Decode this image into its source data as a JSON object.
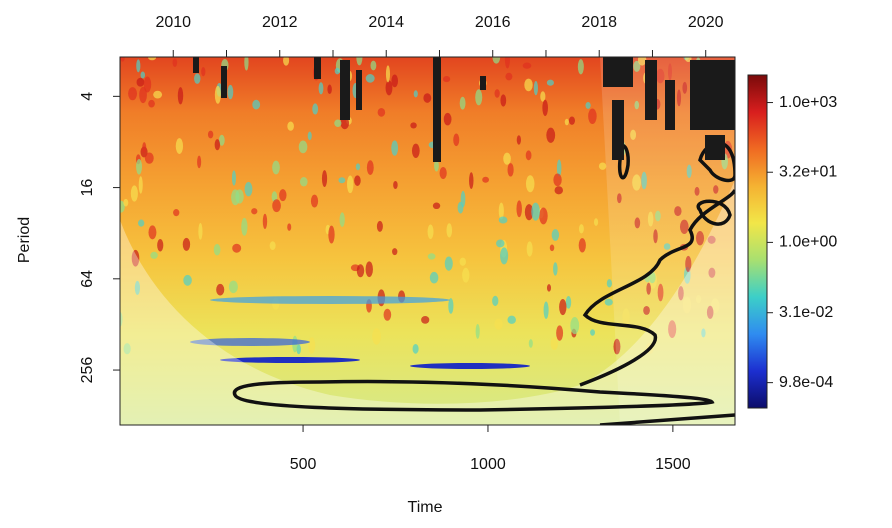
{
  "chart_data": {
    "type": "wavelet",
    "x_label": "Time",
    "y_label": "Period",
    "xlim": [
      5,
      1668
    ],
    "xticks": [
      500,
      1000,
      1500
    ],
    "x2lim": [
      2009.0,
      2020.55
    ],
    "x2ticks": [
      2010,
      2012,
      2014,
      2016,
      2018,
      2020
    ],
    "x2minor_ticks": [
      2011,
      2013,
      2015,
      2017,
      2019
    ],
    "ylim": [
      2.2,
      590
    ],
    "ylog": true,
    "yreversed": true,
    "yticks": [
      4,
      16,
      64,
      256
    ],
    "colorbar": {
      "lim": [
        3900,
        0.00028
      ],
      "log": true,
      "ticks": [
        {
          "value": 1000,
          "label": "1.0e+03"
        },
        {
          "value": 32,
          "label": "3.2e+01"
        },
        {
          "value": 1,
          "label": "1.0e+00"
        },
        {
          "value": 0.031,
          "label": "3.1e-02"
        },
        {
          "value": 0.00098,
          "label": "9.8e-04"
        }
      ],
      "colors": [
        "#7a0a0a",
        "#d81e1e",
        "#f06a22",
        "#f5b232",
        "#f2e648",
        "#a8e070",
        "#3ccfc8",
        "#2f8cf0",
        "#1c2fd0",
        "#0c0c6a"
      ]
    }
  }
}
